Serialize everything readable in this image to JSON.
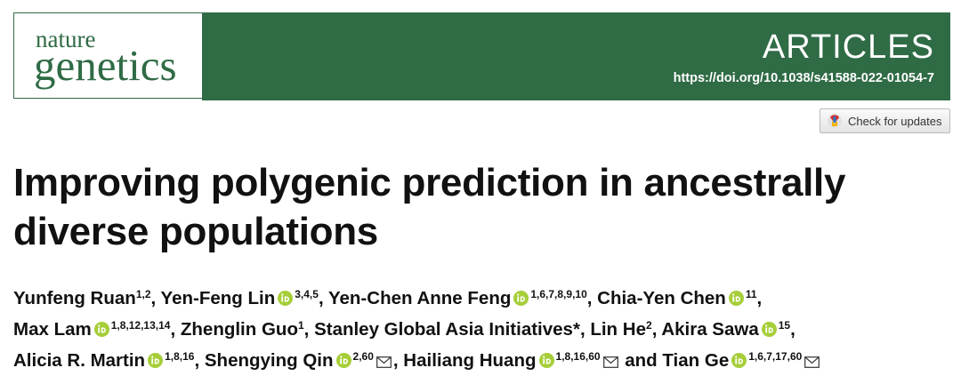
{
  "header": {
    "journal_top": "nature",
    "journal_bottom": "genetics",
    "section": "ARTICLES",
    "doi": "https://doi.org/10.1038/s41588-022-01054-7"
  },
  "check_updates": "Check for updates",
  "title": "Improving polygenic prediction in ancestrally diverse populations",
  "authors": [
    {
      "before": "",
      "name": "Yunfeng Ruan",
      "orcid": false,
      "affiliations": "1,2",
      "email": false
    },
    {
      "before": ", ",
      "name": "Yen-Feng Lin",
      "orcid": true,
      "affiliations": "3,4,5",
      "email": false
    },
    {
      "before": ", ",
      "name": "Yen-Chen Anne Feng",
      "orcid": true,
      "affiliations": "1,6,7,8,9,10",
      "email": false
    },
    {
      "before": ", ",
      "name": "Chia-Yen Chen",
      "orcid": true,
      "affiliations": "11",
      "email": false
    },
    {
      "before": ", ",
      "name": "Max Lam",
      "orcid": true,
      "affiliations": "1,8,12,13,14",
      "email": false
    },
    {
      "before": ", ",
      "name": "Zhenglin Guo",
      "orcid": false,
      "affiliations": "1",
      "email": false
    },
    {
      "before": ", ",
      "name": "Stanley Global Asia Initiatives*",
      "orcid": false,
      "affiliations": "",
      "email": false
    },
    {
      "before": ", ",
      "name": "Lin He",
      "orcid": false,
      "affiliations": "2",
      "email": false
    },
    {
      "before": ", ",
      "name": "Akira Sawa",
      "orcid": true,
      "affiliations": "15",
      "email": false
    },
    {
      "before": ", ",
      "name": "Alicia R. Martin",
      "orcid": true,
      "affiliations": "1,8,16",
      "email": false
    },
    {
      "before": ", ",
      "name": "Shengying Qin",
      "orcid": true,
      "affiliations": "2,60",
      "email": true
    },
    {
      "before": ", ",
      "name": "Hailiang Huang",
      "orcid": true,
      "affiliations": "1,8,16,60",
      "email": true
    },
    {
      "before": " and ",
      "name": "Tian Ge",
      "orcid": true,
      "affiliations": "1,6,7,17,60",
      "email": true
    }
  ]
}
